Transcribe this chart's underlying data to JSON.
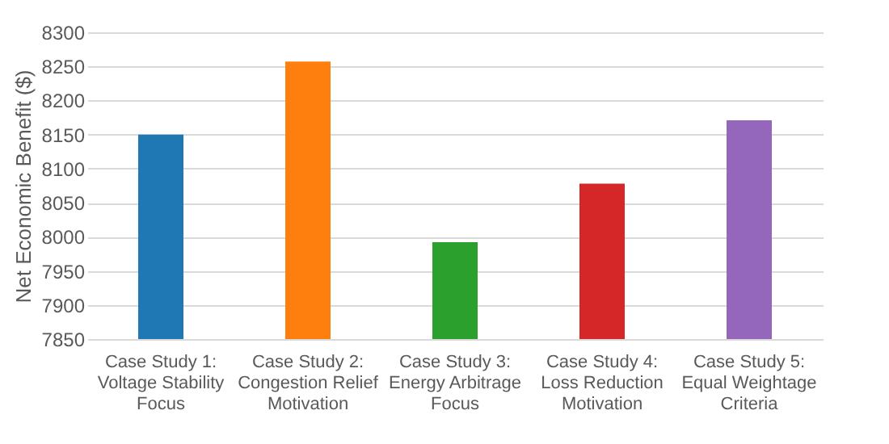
{
  "chart_data": {
    "type": "bar",
    "ylabel": "Net Economic Benefit ($)",
    "categories": [
      "Case Study 1:\nVoltage Stability\nFocus",
      "Case Study 2:\nCongestion Relief\nMotivation",
      "Case Study 3:\nEnergy Arbitrage\nFocus",
      "Case Study 4:\nLoss Reduction\nMotivation",
      "Case Study 5:\nEqual Weightage\nCriteria"
    ],
    "values": [
      8150,
      8257,
      7992,
      8078,
      8171
    ],
    "colors": [
      "#1f77b4",
      "#ff7f0e",
      "#2ca02c",
      "#d62728",
      "#9467bd"
    ],
    "ylim": [
      7850,
      8300
    ],
    "yticks": [
      7850,
      7900,
      7950,
      8000,
      8050,
      8100,
      8150,
      8200,
      8250,
      8300
    ],
    "grid": "y"
  }
}
